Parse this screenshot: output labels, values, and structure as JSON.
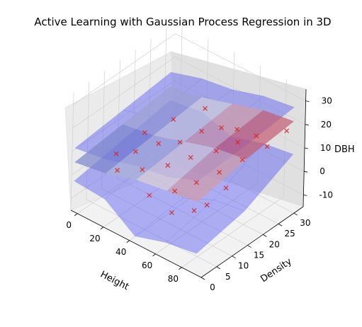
{
  "chart_data": {
    "type": "3d-surface-scatter",
    "title": "Active Learning with Gaussian Process Regression in 3D",
    "xlabel": "Height",
    "ylabel": "Density",
    "zlabel": "DBH",
    "xlim": [
      -5,
      95
    ],
    "ylim": [
      0,
      33
    ],
    "zlim": [
      -15,
      35
    ],
    "x_ticks": [
      "0",
      "20",
      "40",
      "60",
      "80"
    ],
    "y_ticks": [
      "0",
      "5",
      "10",
      "15",
      "20",
      "25",
      "30"
    ],
    "z_ticks": [
      "-10",
      "0",
      "10",
      "20",
      "30"
    ],
    "surfaces": [
      {
        "role": "upper bound",
        "color": "#4d4df2",
        "heights": [
          [
            12,
            14,
            18,
            20,
            25
          ],
          [
            14,
            18,
            22,
            24,
            26
          ],
          [
            16,
            20,
            22,
            26,
            28
          ]
        ]
      },
      {
        "role": "mean prediction",
        "colormap": "coolwarm",
        "heights": [
          [
            6,
            8,
            12,
            14,
            16
          ],
          [
            8,
            10,
            14,
            18,
            20
          ],
          [
            10,
            12,
            16,
            20,
            22
          ]
        ]
      },
      {
        "role": "lower bound",
        "color": "#4d4df2",
        "heights": [
          [
            -2,
            -3,
            -12,
            -8,
            -6
          ],
          [
            1,
            0,
            -10,
            -4,
            -2
          ],
          [
            4,
            6,
            2,
            6,
            8
          ]
        ]
      }
    ],
    "points": [
      {
        "x": 10,
        "y": 8,
        "z": 6
      },
      {
        "x": 20,
        "y": 10,
        "z": 8
      },
      {
        "x": 28,
        "y": 14,
        "z": 10
      },
      {
        "x": 35,
        "y": 18,
        "z": 9
      },
      {
        "x": 42,
        "y": 22,
        "z": 12
      },
      {
        "x": 50,
        "y": 25,
        "z": 13
      },
      {
        "x": 55,
        "y": 28,
        "z": 11
      },
      {
        "x": 18,
        "y": 5,
        "z": 4
      },
      {
        "x": 30,
        "y": 8,
        "z": 5
      },
      {
        "x": 40,
        "y": 12,
        "z": 6
      },
      {
        "x": 48,
        "y": 16,
        "z": 8
      },
      {
        "x": 58,
        "y": 20,
        "z": 10
      },
      {
        "x": 65,
        "y": 24,
        "z": 12
      },
      {
        "x": 72,
        "y": 27,
        "z": 14
      },
      {
        "x": 45,
        "y": 4,
        "z": 2
      },
      {
        "x": 55,
        "y": 8,
        "z": 3
      },
      {
        "x": 62,
        "y": 12,
        "z": 5
      },
      {
        "x": 70,
        "y": 16,
        "z": 8
      },
      {
        "x": 78,
        "y": 20,
        "z": 12
      },
      {
        "x": 85,
        "y": 25,
        "z": 15
      },
      {
        "x": 60,
        "y": 5,
        "z": -2
      },
      {
        "x": 70,
        "y": 8,
        "z": -1
      },
      {
        "x": 75,
        "y": 10,
        "z": 1
      },
      {
        "x": 80,
        "y": 14,
        "z": 6
      },
      {
        "x": 25,
        "y": 20,
        "z": 14
      },
      {
        "x": 35,
        "y": 26,
        "z": 16
      },
      {
        "x": 15,
        "y": 15,
        "z": 10
      },
      {
        "x": 88,
        "y": 30,
        "z": 18
      }
    ],
    "point_marker": "x",
    "grid": true
  }
}
